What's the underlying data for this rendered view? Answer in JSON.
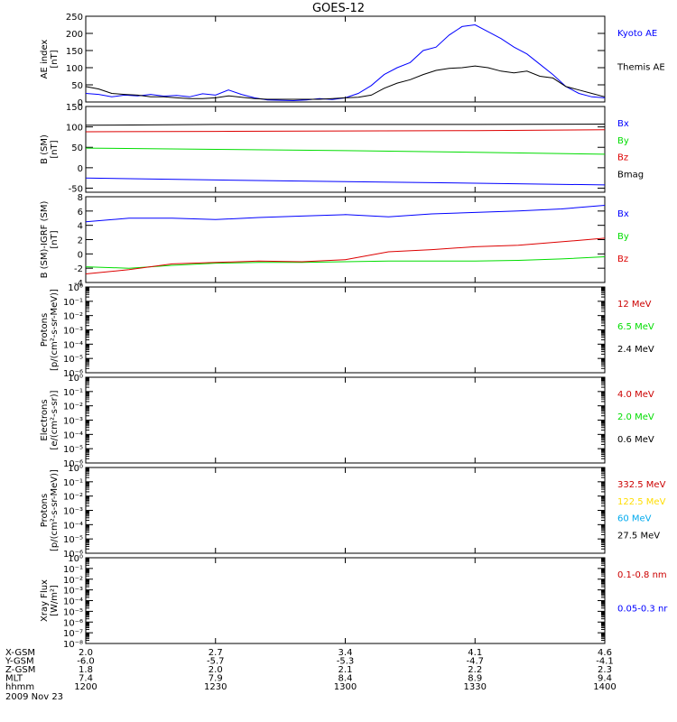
{
  "title": "GOES-12",
  "chart_data": [
    {
      "type": "line",
      "ylabel": [
        "AE index",
        "[nT]"
      ],
      "ylim": [
        0,
        250
      ],
      "yticks": [
        {
          "v": 0,
          "label": "0"
        },
        {
          "v": 50,
          "label": "50"
        },
        {
          "v": 100,
          "label": "100"
        },
        {
          "v": 150,
          "label": "150"
        },
        {
          "v": 200,
          "label": "200"
        },
        {
          "v": 250,
          "label": "250"
        }
      ],
      "xlim": [
        0,
        120
      ],
      "series": [
        {
          "name": "Kyoto AE",
          "color": "#0000ff",
          "x": [
            0,
            3,
            6,
            9,
            12,
            15,
            18,
            21,
            24,
            27,
            30,
            33,
            36,
            39,
            42,
            45,
            48,
            51,
            54,
            57,
            60,
            63,
            66,
            69,
            72,
            75,
            78,
            81,
            84,
            87,
            90,
            93,
            96,
            99,
            102,
            105,
            108,
            111,
            114,
            117,
            120
          ],
          "y": [
            25,
            22,
            15,
            20,
            18,
            22,
            17,
            19,
            15,
            24,
            20,
            35,
            22,
            12,
            6,
            5,
            4,
            6,
            10,
            7,
            12,
            25,
            48,
            80,
            100,
            115,
            150,
            160,
            195,
            220,
            225,
            205,
            185,
            160,
            140,
            110,
            80,
            45,
            25,
            15,
            12
          ]
        },
        {
          "name": "Themis AE",
          "color": "#000000",
          "x": [
            0,
            3,
            6,
            9,
            12,
            15,
            18,
            21,
            24,
            27,
            30,
            33,
            36,
            39,
            42,
            45,
            48,
            51,
            54,
            57,
            60,
            63,
            66,
            69,
            72,
            75,
            78,
            81,
            84,
            87,
            90,
            93,
            96,
            99,
            102,
            105,
            108,
            111,
            114,
            117,
            120
          ],
          "y": [
            45,
            38,
            25,
            22,
            20,
            15,
            15,
            12,
            10,
            10,
            12,
            18,
            14,
            10,
            8,
            8,
            8,
            8,
            8,
            10,
            12,
            14,
            20,
            40,
            55,
            65,
            80,
            92,
            98,
            100,
            105,
            100,
            90,
            85,
            90,
            75,
            70,
            45,
            35,
            25,
            15
          ]
        }
      ]
    },
    {
      "type": "line",
      "ylabel": [
        "B (SM)",
        "[nT]"
      ],
      "ylim": [
        -60,
        150
      ],
      "yticks": [
        {
          "v": -50,
          "label": "-50"
        },
        {
          "v": 0,
          "label": "0"
        },
        {
          "v": 50,
          "label": "50"
        },
        {
          "v": 100,
          "label": "100"
        },
        {
          "v": 150,
          "label": "150"
        }
      ],
      "xlim": [
        0,
        120
      ],
      "series": [
        {
          "name": "Bx",
          "color": "#0000ff",
          "x": [
            0,
            30,
            60,
            90,
            120
          ],
          "y": [
            -25,
            -30,
            -34,
            -38,
            -42
          ]
        },
        {
          "name": "By",
          "color": "#00dd00",
          "x": [
            0,
            30,
            60,
            90,
            120
          ],
          "y": [
            48,
            45,
            42,
            38,
            33
          ]
        },
        {
          "name": "Bz",
          "color": "#dd0000",
          "x": [
            0,
            30,
            60,
            90,
            120
          ],
          "y": [
            88,
            89,
            90,
            91,
            93
          ]
        },
        {
          "name": "Bmag",
          "color": "#000000",
          "x": [
            0,
            30,
            60,
            90,
            120
          ],
          "y": [
            104,
            106,
            106,
            106,
            107
          ]
        }
      ]
    },
    {
      "type": "line",
      "ylabel": [
        "B (SM)-IGRF (SM)",
        "[nT]"
      ],
      "ylim": [
        -4,
        8
      ],
      "yticks": [
        {
          "v": -4,
          "label": "-4"
        },
        {
          "v": -2,
          "label": "-2"
        },
        {
          "v": 0,
          "label": "0"
        },
        {
          "v": 2,
          "label": "2"
        },
        {
          "v": 4,
          "label": "4"
        },
        {
          "v": 6,
          "label": "6"
        },
        {
          "v": 8,
          "label": "8"
        }
      ],
      "xlim": [
        0,
        120
      ],
      "series": [
        {
          "name": "Bx",
          "color": "#0000ff",
          "x": [
            0,
            10,
            20,
            30,
            40,
            50,
            60,
            70,
            80,
            90,
            100,
            110,
            120
          ],
          "y": [
            4.5,
            5.0,
            5.0,
            4.8,
            5.1,
            5.3,
            5.5,
            5.2,
            5.6,
            5.8,
            6.0,
            6.3,
            6.8
          ]
        },
        {
          "name": "By",
          "color": "#00dd00",
          "x": [
            0,
            10,
            20,
            30,
            40,
            50,
            60,
            70,
            80,
            90,
            100,
            110,
            120
          ],
          "y": [
            -1.8,
            -2.0,
            -1.6,
            -1.3,
            -1.2,
            -1.2,
            -1.1,
            -1.0,
            -1.0,
            -1.0,
            -0.9,
            -0.7,
            -0.4
          ]
        },
        {
          "name": "Bz",
          "color": "#dd0000",
          "x": [
            0,
            10,
            20,
            30,
            40,
            50,
            60,
            70,
            80,
            90,
            100,
            110,
            120
          ],
          "y": [
            -2.8,
            -2.2,
            -1.4,
            -1.2,
            -1.0,
            -1.1,
            -0.8,
            0.3,
            0.6,
            1.0,
            1.2,
            1.7,
            2.2
          ]
        }
      ]
    },
    {
      "type": "line",
      "ylabel": [
        "Protons",
        "[p/(cm²-s-sr-MeV)]"
      ],
      "ylim": [
        "1e-6",
        "1e0"
      ],
      "log": true,
      "yticks": [
        {
          "exp": 0,
          "label": "10⁰"
        },
        {
          "exp": -1,
          "label": "10⁻¹"
        },
        {
          "exp": -2,
          "label": "10⁻²"
        },
        {
          "exp": -3,
          "label": "10⁻³"
        },
        {
          "exp": -4,
          "label": "10⁻⁴"
        },
        {
          "exp": -5,
          "label": "10⁻⁵"
        },
        {
          "exp": -6,
          "label": "10⁻⁶"
        }
      ],
      "legend": [
        {
          "name": "12 MeV",
          "color": "#cc0000"
        },
        {
          "name": "6.5 MeV",
          "color": "#00dd00"
        },
        {
          "name": "2.4 MeV",
          "color": "#000000"
        }
      ],
      "series": []
    },
    {
      "type": "line",
      "ylabel": [
        "Electrons",
        "[e/(cm²-s-sr)]"
      ],
      "ylim": [
        "1e-6",
        "1e0"
      ],
      "log": true,
      "yticks": [
        {
          "exp": 0,
          "label": "10⁰"
        },
        {
          "exp": -1,
          "label": "10⁻¹"
        },
        {
          "exp": -2,
          "label": "10⁻²"
        },
        {
          "exp": -3,
          "label": "10⁻³"
        },
        {
          "exp": -4,
          "label": "10⁻⁴"
        },
        {
          "exp": -5,
          "label": "10⁻⁵"
        },
        {
          "exp": -6,
          "label": "10⁻⁶"
        }
      ],
      "legend": [
        {
          "name": "4.0 MeV",
          "color": "#cc0000"
        },
        {
          "name": "2.0 MeV",
          "color": "#00dd00"
        },
        {
          "name": "0.6 MeV",
          "color": "#000000"
        }
      ],
      "series": []
    },
    {
      "type": "line",
      "ylabel": [
        "Protons",
        "[p/(cm²-s-sr-MeV)]"
      ],
      "ylim": [
        "1e-6",
        "1e0"
      ],
      "log": true,
      "yticks": [
        {
          "exp": 0,
          "label": "10⁰"
        },
        {
          "exp": -1,
          "label": "10⁻¹"
        },
        {
          "exp": -2,
          "label": "10⁻²"
        },
        {
          "exp": -3,
          "label": "10⁻³"
        },
        {
          "exp": -4,
          "label": "10⁻⁴"
        },
        {
          "exp": -5,
          "label": "10⁻⁵"
        },
        {
          "exp": -6,
          "label": "10⁻⁶"
        }
      ],
      "legend": [
        {
          "name": "332.5 MeV",
          "color": "#cc0000"
        },
        {
          "name": "122.5 MeV",
          "color": "#ffdd00"
        },
        {
          "name": "60 MeV",
          "color": "#00aaee"
        },
        {
          "name": "27.5 MeV",
          "color": "#000000"
        }
      ],
      "series": []
    },
    {
      "type": "line",
      "ylabel": [
        "Xray Flux",
        "[W/m²]"
      ],
      "ylim": [
        "1e-8",
        "1e0"
      ],
      "log": true,
      "yticks": [
        {
          "exp": 0,
          "label": "10⁰"
        },
        {
          "exp": -1,
          "label": "10⁻¹"
        },
        {
          "exp": -2,
          "label": "10⁻²"
        },
        {
          "exp": -3,
          "label": "10⁻³"
        },
        {
          "exp": -4,
          "label": "10⁻⁴"
        },
        {
          "exp": -5,
          "label": "10⁻⁵"
        },
        {
          "exp": -6,
          "label": "10⁻⁶"
        },
        {
          "exp": -7,
          "label": "10⁻⁷"
        },
        {
          "exp": -8,
          "label": "10⁻⁸"
        }
      ],
      "legend": [
        {
          "name": "0.1-0.8 nm",
          "color": "#cc0000"
        },
        {
          "name": "0.05-0.3 nr",
          "color": "#0000ff"
        }
      ],
      "series": []
    }
  ],
  "x_axis": {
    "row_labels": [
      "X-GSM",
      "Y-GSM",
      "Z-GSM",
      "MLT",
      "hhmm"
    ],
    "columns": [
      {
        "values": [
          "2.0",
          "-6.0",
          "1.8",
          "7.4",
          "1200"
        ]
      },
      {
        "values": [
          "2.7",
          "-5.7",
          "2.0",
          "7.9",
          "1230"
        ]
      },
      {
        "values": [
          "3.4",
          "-5.3",
          "2.1",
          "8.4",
          "1300"
        ]
      },
      {
        "values": [
          "4.1",
          "-4.7",
          "2.2",
          "8.9",
          "1330"
        ]
      },
      {
        "values": [
          "4.6",
          "-4.1",
          "2.3",
          "9.4",
          "1400"
        ]
      }
    ],
    "date": "2009 Nov 23"
  }
}
